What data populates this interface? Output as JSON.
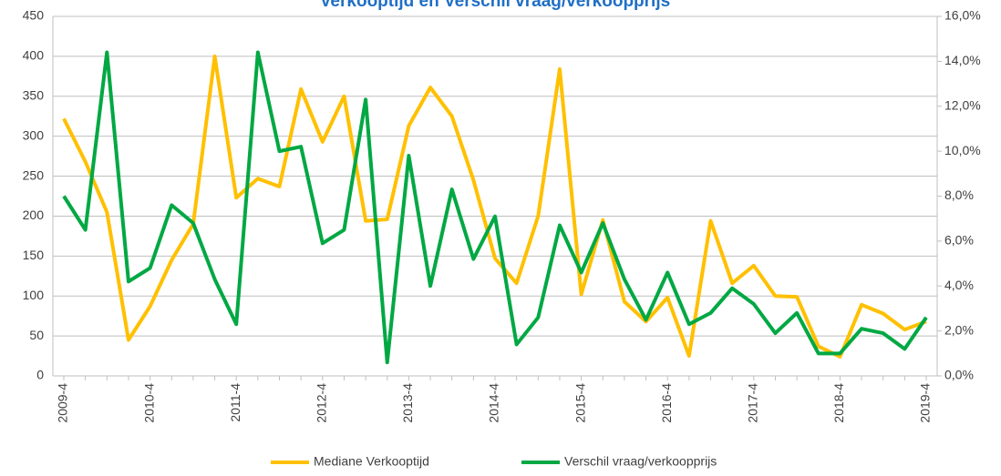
{
  "chart_data": {
    "type": "line",
    "title": "Verkooptijd en Verschil vraag/verkoopprijs",
    "categories": [
      "2009-4",
      null,
      null,
      null,
      "2010-4",
      null,
      null,
      null,
      "2011-4",
      null,
      null,
      null,
      "2012-4",
      null,
      null,
      null,
      "2013-4",
      null,
      null,
      null,
      "2014-4",
      null,
      null,
      null,
      "2015-4",
      null,
      null,
      null,
      "2016-4",
      null,
      null,
      null,
      "2017-4",
      null,
      null,
      null,
      "2018-4",
      null,
      null,
      null,
      "2019-4"
    ],
    "series": [
      {
        "name": "Mediane Verkooptijd",
        "color": "#ffc000",
        "values": [
          322,
          268,
          205,
          45,
          87,
          145,
          190,
          400,
          223,
          247,
          237,
          359,
          293,
          350,
          194,
          196,
          313,
          361,
          325,
          245,
          147,
          116,
          200,
          384,
          102,
          195,
          93,
          68,
          98,
          25,
          194,
          116,
          138,
          100,
          99,
          37,
          24,
          89,
          78,
          58,
          68
        ]
      },
      {
        "name": "Verschil vraag/verkoopprijs",
        "color": "#00a843",
        "axis": "y2",
        "values": [
          8.0,
          6.5,
          14.4,
          4.2,
          4.8,
          7.6,
          6.8,
          4.3,
          2.3,
          14.4,
          10.0,
          10.2,
          5.9,
          6.5,
          12.3,
          0.6,
          9.8,
          4.0,
          8.3,
          5.2,
          7.1,
          1.4,
          2.6,
          6.7,
          4.6,
          6.8,
          4.3,
          2.5,
          4.6,
          2.3,
          2.8,
          3.9,
          3.2,
          1.9,
          2.8,
          1.0,
          1.0,
          2.1,
          1.9,
          1.2,
          2.6
        ]
      }
    ],
    "ylim": [
      0,
      450
    ],
    "yticks": [
      0,
      50,
      100,
      150,
      200,
      250,
      300,
      350,
      400,
      450
    ],
    "y2lim": [
      0,
      16
    ],
    "y2ticks": [
      {
        "value": 0,
        "label": "0,0%"
      },
      {
        "value": 2,
        "label": "2,0%"
      },
      {
        "value": 4,
        "label": "4,0%"
      },
      {
        "value": 6,
        "label": "6,0%"
      },
      {
        "value": 8,
        "label": "8,0%"
      },
      {
        "value": 10,
        "label": "10,0%"
      },
      {
        "value": 12,
        "label": "12,0%"
      },
      {
        "value": 14,
        "label": "14,0%"
      },
      {
        "value": 16,
        "label": "16,0%"
      }
    ],
    "grid": true,
    "legend": "bottom"
  }
}
